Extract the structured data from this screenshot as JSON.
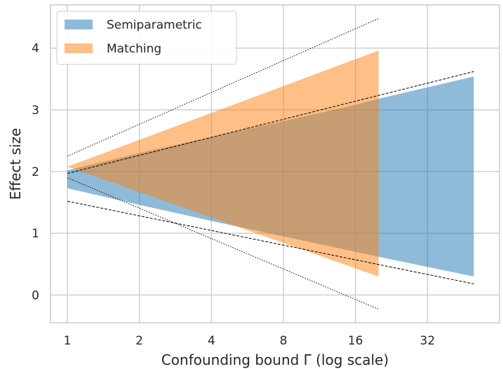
{
  "chart_data": {
    "type": "area",
    "title": "",
    "xlabel": "Confounding bound Γ (log scale)",
    "ylabel": "Effect size",
    "x_scale": "log2",
    "xlim": [
      0.85,
      64
    ],
    "ylim": [
      -0.45,
      4.7
    ],
    "x_ticks": [
      1,
      2,
      4,
      8,
      16,
      32
    ],
    "x_tick_labels": [
      "1",
      "2",
      "4",
      "8",
      "16",
      "32"
    ],
    "y_ticks": [
      0,
      1,
      2,
      3,
      4
    ],
    "y_tick_labels": [
      "0",
      "1",
      "2",
      "3",
      "4"
    ],
    "grid": true,
    "legend_position": "top-left",
    "series": [
      {
        "name": "Semiparametric",
        "kind": "band",
        "color": "#1f77b4",
        "x": [
          1,
          2,
          4,
          8,
          16,
          20,
          50
        ],
        "upper": [
          2.02,
          2.3,
          2.56,
          2.82,
          3.08,
          3.18,
          3.54
        ],
        "lower": [
          1.73,
          1.46,
          1.2,
          0.95,
          0.7,
          0.62,
          0.3
        ]
      },
      {
        "name": "Matching",
        "kind": "band",
        "color": "#ff7f0e",
        "x": [
          1,
          20
        ],
        "upper": [
          2.08,
          3.96
        ],
        "lower": [
          2.08,
          0.3
        ]
      }
    ],
    "reference_lines": [
      {
        "style": "dotted",
        "x": [
          1,
          20
        ],
        "y": [
          2.25,
          4.48
        ]
      },
      {
        "style": "dotted",
        "x": [
          1,
          20
        ],
        "y": [
          1.9,
          -0.23
        ]
      },
      {
        "style": "dashed",
        "x": [
          1,
          50
        ],
        "y": [
          1.97,
          3.62
        ]
      },
      {
        "style": "dashed",
        "x": [
          1,
          50
        ],
        "y": [
          1.52,
          0.18
        ]
      }
    ]
  }
}
